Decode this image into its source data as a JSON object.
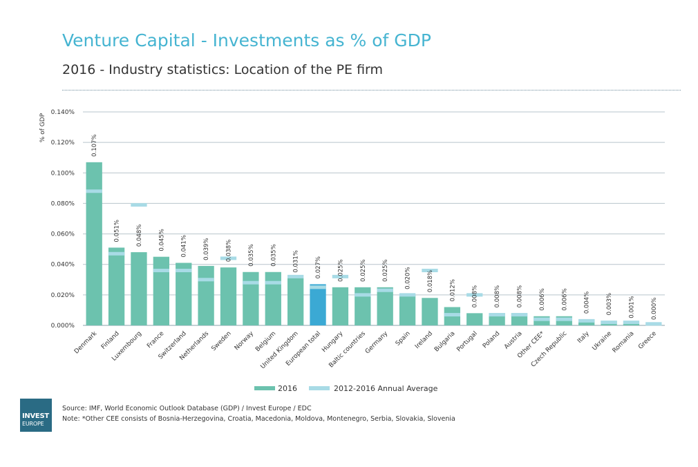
{
  "header": {
    "title": "Venture Capital - Investments as % of GDP",
    "subtitle": "2016 - Industry statistics: Location of the PE firm"
  },
  "footer": {
    "source": "Source: IMF, World Economic Outlook Database (GDP) / Invest Europe / EDC",
    "note": "Note: *Other CEE consists of Bosnia-Herzegovina, Croatia, Macedonia, Moldova, Montenegro, Serbia, Slovakia, Slovenia"
  },
  "logo": {
    "line1": "INVEST",
    "line2": "EUROPE"
  },
  "colors": {
    "title": "#45b4d1",
    "bar_2016": "#6cc2ae",
    "bar_highlight": "#3ba9d4",
    "average_marker": "#a8dbe6",
    "grid": "#b7c4cc",
    "text": "#333333"
  },
  "chart_data": {
    "type": "bar",
    "ylabel": "% of GDP",
    "ylim": [
      0,
      0.14
    ],
    "yticks": [
      0,
      0.02,
      0.04,
      0.06,
      0.08,
      0.1,
      0.12,
      0.14
    ],
    "ytick_labels": [
      "0.000%",
      "0.020%",
      "0.040%",
      "0.060%",
      "0.080%",
      "0.100%",
      "0.120%",
      "0.140%"
    ],
    "grid": true,
    "legend_position": "bottom",
    "highlight_category": "European total",
    "categories": [
      "Denmark",
      "Finland",
      "Luxembourg",
      "France",
      "Switzerland",
      "Netherlands",
      "Sweden",
      "Norway",
      "Belgium",
      "United Kingdom",
      "European total",
      "Hungary",
      "Baltic countries",
      "Germany",
      "Spain",
      "Ireland",
      "Bulgaria",
      "Portugal",
      "Poland",
      "Austria",
      "Other CEE*",
      "Czech Republic",
      "Italy",
      "Ukraine",
      "Romania",
      "Greece"
    ],
    "series": [
      {
        "name": "2016",
        "values": [
          0.107,
          0.051,
          0.048,
          0.045,
          0.041,
          0.039,
          0.038,
          0.035,
          0.035,
          0.031,
          0.027,
          0.025,
          0.025,
          0.025,
          0.02,
          0.018,
          0.012,
          0.008,
          0.008,
          0.008,
          0.006,
          0.006,
          0.004,
          0.003,
          0.001,
          0.0
        ],
        "labels": [
          "0.107%",
          "0.051%",
          "0.048%",
          "0.045%",
          "0.041%",
          "0.039%",
          "0.038%",
          "0.035%",
          "0.035%",
          "0.031%",
          "0.027%",
          "0.025%",
          "0.025%",
          "0.025%",
          "0.020%",
          "0.018%",
          "0.012%",
          "0.008%",
          "0.008%",
          "0.008%",
          "0.006%",
          "0.006%",
          "0.004%",
          "0.003%",
          "0.001%",
          "0.000%"
        ]
      },
      {
        "name": "2012-2016 Annual Average",
        "values": [
          0.088,
          0.047,
          0.079,
          0.036,
          0.036,
          0.03,
          0.044,
          0.028,
          0.028,
          0.032,
          0.025,
          0.032,
          0.02,
          0.023,
          0.02,
          0.036,
          0.007,
          0.02,
          0.007,
          0.007,
          0.004,
          0.004,
          0.003,
          0.002,
          0.002,
          0.001
        ]
      }
    ]
  }
}
